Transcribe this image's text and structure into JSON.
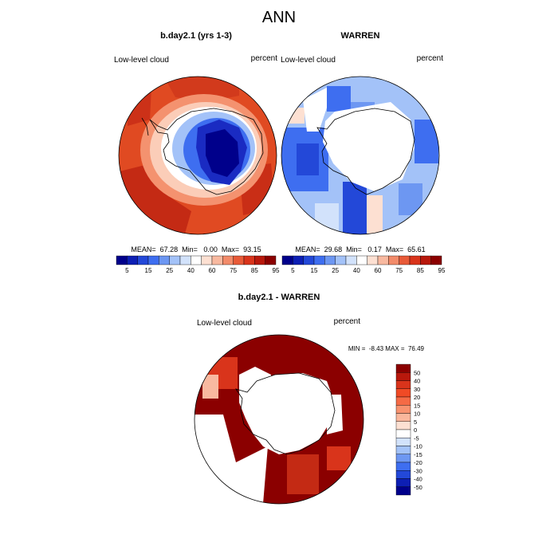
{
  "page_title": "ANN",
  "chart_data": [
    {
      "type": "heatmap",
      "title": "b.day2.1 (yrs 1-3)",
      "left_label": "Low-level cloud",
      "right_label": "percent",
      "stats": "MEAN=  67.28  Min=   0.00  Max=  93.15",
      "colorbar_ticks": [
        "5",
        "15",
        "25",
        "40",
        "60",
        "75",
        "85",
        "95"
      ],
      "colorbar_colors": [
        "#00008b",
        "#0d1fb4",
        "#2348d8",
        "#3e6ef0",
        "#6d97f2",
        "#a3c2f8",
        "#d2e2fb",
        "#ffffff",
        "#fde0d2",
        "#f8b9a0",
        "#f28b6a",
        "#e85a38",
        "#d9341b",
        "#b8180c",
        "#8b0000"
      ],
      "pattern": "high over Southern Ocean (~75-93%), low over Antarctic interior (~0-25%)",
      "min": 0.0,
      "max": 93.15,
      "mean": 67.28
    },
    {
      "type": "heatmap",
      "title": "WARREN",
      "left_label": "Low-level cloud",
      "right_label": "percent",
      "stats": "MEAN=  29.68  Min=   0.17  Max=  65.61",
      "colorbar_ticks": [
        "5",
        "15",
        "25",
        "40",
        "60",
        "75",
        "85",
        "95"
      ],
      "colorbar_colors": [
        "#00008b",
        "#0d1fb4",
        "#2348d8",
        "#3e6ef0",
        "#6d97f2",
        "#a3c2f8",
        "#d2e2fb",
        "#ffffff",
        "#fde0d2",
        "#f8b9a0",
        "#f28b6a",
        "#e85a38",
        "#d9341b",
        "#b8180c",
        "#8b0000"
      ],
      "pattern": "ocean ring mostly 15-40%, missing over Antarctica",
      "min": 0.17,
      "max": 65.61,
      "mean": 29.68
    },
    {
      "type": "heatmap",
      "title": "b.day2.1 - WARREN",
      "left_label": "Low-level cloud",
      "right_label": "percent",
      "stats": "MIN =  -8.43 MAX =  76.49",
      "colorbar_ticks": [
        "50",
        "40",
        "30",
        "20",
        "15",
        "10",
        "5",
        "0",
        "-5",
        "-10",
        "-15",
        "-20",
        "-30",
        "-40",
        "-50"
      ],
      "colorbar_colors": [
        "#8b0000",
        "#b8180c",
        "#d9341b",
        "#f04a25",
        "#f56a45",
        "#f8926f",
        "#fab79c",
        "#fde0d2",
        "#ffffff",
        "#d2e2fb",
        "#a3c2f8",
        "#6d97f2",
        "#3e6ef0",
        "#2348d8",
        "#0d1fb4",
        "#00008b"
      ],
      "pattern": "mostly 40-50+ over ocean ring, missing over Antarctica and some sectors",
      "min": -8.43,
      "max": 76.49
    }
  ]
}
